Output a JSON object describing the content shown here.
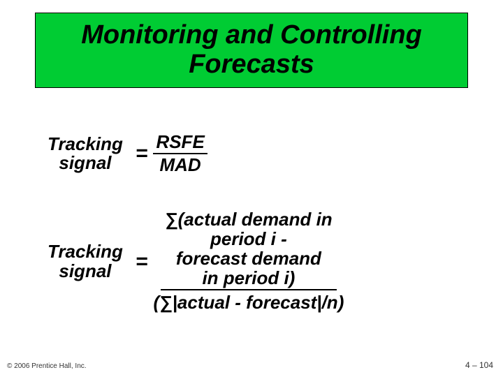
{
  "title_box": {
    "line1": "Monitoring and Controlling",
    "line2": "Forecasts",
    "bg_color": "#00cc33",
    "border_color": "#000000"
  },
  "formula1": {
    "lhs_line1": "Tracking",
    "lhs_line2": "signal",
    "eq": "=",
    "numerator": "RSFE",
    "denominator": "MAD"
  },
  "formula2": {
    "lhs_line1": "Tracking",
    "lhs_line2": "signal",
    "eq": "=",
    "num_line1": "∑(actual demand in",
    "num_line2": "period i -",
    "num_line3": "forecast demand",
    "num_line4": "in period i)",
    "denominator": "(∑|actual - forecast|/n)"
  },
  "footer": {
    "copyright": "© 2006 Prentice Hall, Inc.",
    "page": "4 – 104"
  },
  "colors": {
    "text": "#000000",
    "page_bg": "#ffffff"
  }
}
